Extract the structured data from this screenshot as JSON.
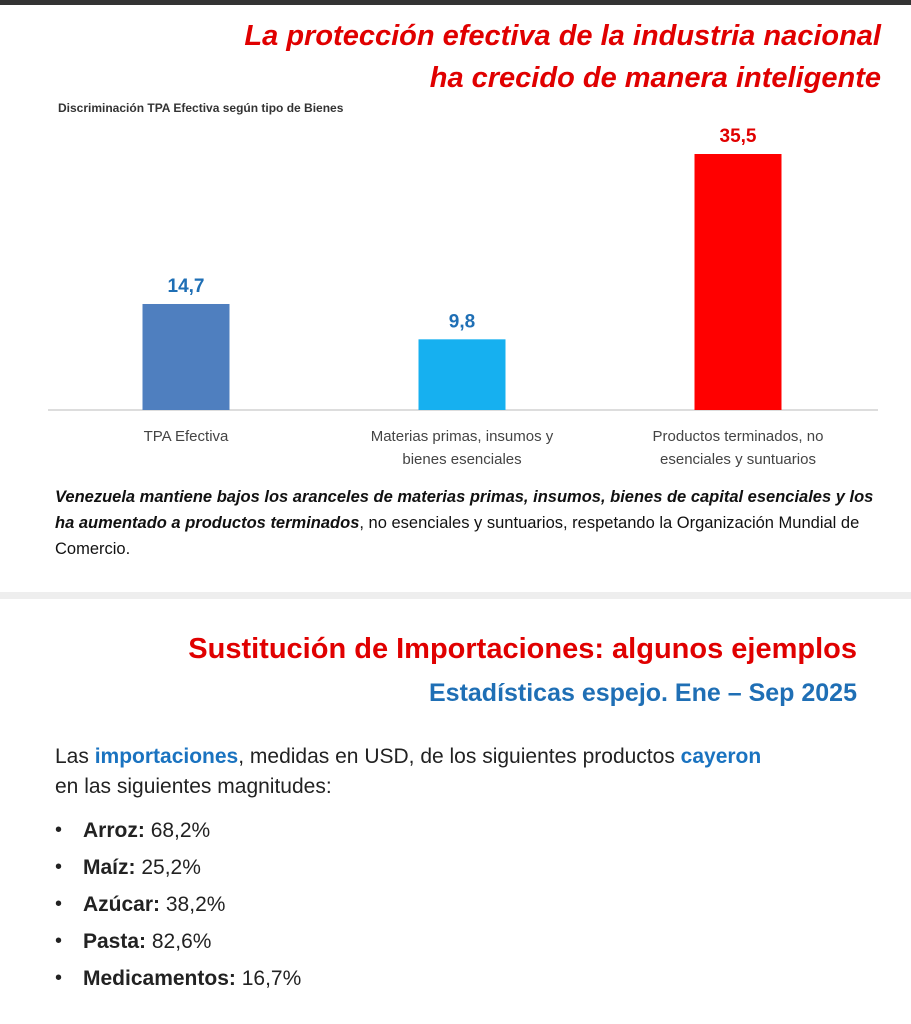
{
  "header": {
    "title_line1": "La protección efectiva de la industria nacional",
    "title_line2": "ha crecido de manera inteligente"
  },
  "chart_data": {
    "type": "bar",
    "title": "Discriminación TPA Efectiva según tipo de Bienes",
    "categories": [
      "TPA Efectiva",
      "Materias primas, insumos y bienes esenciales",
      "Productos terminados, no esenciales y suntuarios"
    ],
    "category_lines": [
      [
        "TPA Efectiva",
        ""
      ],
      [
        "Materias primas, insumos y",
        "bienes esenciales"
      ],
      [
        "Productos terminados, no",
        "esenciales y suntuarios"
      ]
    ],
    "values": [
      14.7,
      9.8,
      35.5
    ],
    "value_labels": [
      "14,7",
      "9,8",
      "35,5"
    ],
    "colors": [
      "#4f7fbf",
      "#16b0f0",
      "#ff0000"
    ],
    "label_colors": [
      "#1f6fb5",
      "#1f6fb5",
      "#e00000"
    ],
    "ylim": [
      0,
      35.5
    ],
    "grid": false,
    "legend": "none"
  },
  "note": {
    "bold": "Venezuela mantiene bajos los aranceles de materias primas, insumos, bienes de capital esenciales y los ha aumentado a productos terminados",
    "rest": ", no esenciales y suntuarios, respetando la Organización Mundial de Comercio."
  },
  "section2": {
    "title": "Sustitución de Importaciones: algunos ejemplos",
    "subtitle": "Estadísticas espejo. Ene – Sep 2025",
    "intro_1": "Las ",
    "intro_hl1": "importaciones",
    "intro_2": ", medidas en USD, de los siguientes productos ",
    "intro_hl2": "cayeron",
    "intro_3": "en las siguientes magnitudes:",
    "items": [
      {
        "label": "Arroz:",
        "value": "68,2%"
      },
      {
        "label": "Maíz:",
        "value": "25,2%"
      },
      {
        "label": "Azúcar:",
        "value": "38,2%"
      },
      {
        "label": "Pasta:",
        "value": "82,6%"
      },
      {
        "label": "Medicamentos:",
        "value": "16,7%"
      }
    ],
    "bullet": "•"
  }
}
